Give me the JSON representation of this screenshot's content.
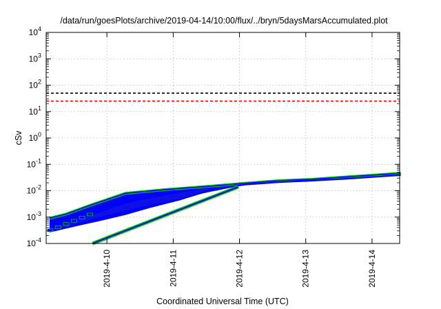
{
  "chart_data": {
    "type": "line",
    "title": "/data/run/goesPlots/archive/2019-04-14/10:00/flux/../bryn/5daysMarsAccumulated.plot",
    "xlabel": "Coordinated Universal Time (UTC)",
    "ylabel": "cSv",
    "yscale": "log",
    "ylim": [
      0.0001,
      10000
    ],
    "xlim": [
      "2019-04-09 02:00",
      "2019-04-14 10:00"
    ],
    "grid": true,
    "ytick_labels": [
      {
        "base": "10",
        "exp": "-4"
      },
      {
        "base": "10",
        "exp": "-3"
      },
      {
        "base": "10",
        "exp": "-2"
      },
      {
        "base": "10",
        "exp": "-1"
      },
      {
        "base": "10",
        "exp": "0"
      },
      {
        "base": "10",
        "exp": "1"
      },
      {
        "base": "10",
        "exp": "2"
      },
      {
        "base": "10",
        "exp": "3"
      },
      {
        "base": "10",
        "exp": "4"
      }
    ],
    "xtick_labels": [
      "2019-4-10",
      "2019-4-11",
      "2019-4-12",
      "2019-4-13",
      "2019-4-14"
    ],
    "reference_lines": [
      {
        "value": 50,
        "color": "#000000",
        "style": "dashed"
      },
      {
        "value": 25,
        "color": "#ff0000",
        "style": "dashed"
      }
    ],
    "series_colors": {
      "core": "#0000ff",
      "outline": "#00cc00"
    },
    "upper_band": {
      "x_days": [
        0.05,
        0.3,
        0.7,
        1.2,
        1.8,
        2.5,
        3.0,
        3.5,
        4.0,
        4.5,
        5.0,
        5.35
      ],
      "y": [
        0.0009,
        0.0013,
        0.003,
        0.008,
        0.011,
        0.015,
        0.019,
        0.024,
        0.027,
        0.033,
        0.04,
        0.046
      ]
    },
    "lower_band": {
      "x_days": [
        0.05,
        0.4,
        0.8,
        1.2,
        1.6,
        2.0,
        2.5,
        3.0,
        3.5,
        4.0,
        4.5,
        5.0,
        5.35
      ],
      "y": [
        0.00028,
        0.00045,
        0.00075,
        0.0013,
        0.0025,
        0.0045,
        0.011,
        0.017,
        0.021,
        0.024,
        0.028,
        0.034,
        0.039
      ]
    },
    "early_line": {
      "x_days": [
        0.7,
        2.9
      ],
      "y": [
        0.0001,
        0.014
      ]
    }
  }
}
